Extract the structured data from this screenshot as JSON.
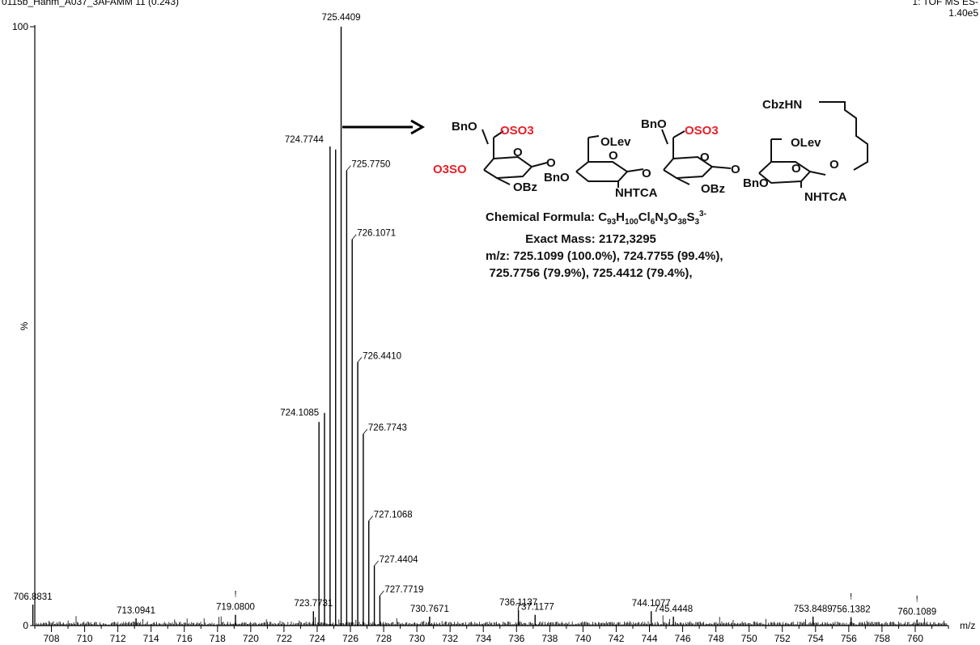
{
  "header": {
    "file_label": "0115b_Hahm_A037_3AFAMM 11 (0.243)",
    "scan_label": "1: TOF MS ES-",
    "intensity_label": "1.40e5"
  },
  "molecule": {
    "formula_prefix": "Chemical Formula: ",
    "exact_mass": "Exact Mass: 2172,3295",
    "mz_line1": "m/z: 725.1099 (100.0%), 724.7755 (99.4%),",
    "mz_line2": "725.7756 (79.9%), 725.4412 (79.4%),",
    "groups": {
      "bno": "BnO",
      "oso3": "OSO3",
      "o3so": "O3SO",
      "obz": "OBz",
      "olev": "OLev",
      "nhtca": "NHTCA",
      "cbzhn": "CbzHN",
      "o": "O"
    },
    "colors": {
      "sulfate": "#e8202a",
      "text": "#111111"
    }
  },
  "chart_data": {
    "type": "bar",
    "title": "",
    "xlabel": "m/z",
    "ylabel": "%",
    "xlim": [
      707,
      762
    ],
    "ylim": [
      0,
      100
    ],
    "x_ticks": [
      708,
      710,
      712,
      714,
      716,
      718,
      720,
      722,
      724,
      726,
      728,
      730,
      732,
      734,
      736,
      738,
      740,
      742,
      744,
      746,
      748,
      750,
      752,
      754,
      756,
      758,
      760
    ],
    "y_ticks": [
      0,
      100
    ],
    "y_tick_labels": [
      "0",
      "100"
    ],
    "peaks": [
      {
        "mz": 706.8831,
        "intensity": 3.5,
        "label": "706.8831"
      },
      {
        "mz": 713.0941,
        "intensity": 1.2,
        "label": "713.0941"
      },
      {
        "mz": 719.08,
        "intensity": 1.8,
        "label": "719.0800"
      },
      {
        "mz": 723.7731,
        "intensity": 2.4,
        "label": "723.7731"
      },
      {
        "mz": 724.1085,
        "intensity": 34.0,
        "label": "724.1085"
      },
      {
        "mz": 724.44,
        "intensity": 35.5,
        "label": ""
      },
      {
        "mz": 724.7744,
        "intensity": 80.0,
        "label": "724.7744"
      },
      {
        "mz": 725.1099,
        "intensity": 79.5,
        "label": ""
      },
      {
        "mz": 725.4409,
        "intensity": 100.0,
        "label": "725.4409"
      },
      {
        "mz": 725.775,
        "intensity": 76.0,
        "label": "725.7750"
      },
      {
        "mz": 726.1071,
        "intensity": 64.5,
        "label": "726.1071"
      },
      {
        "mz": 726.441,
        "intensity": 44.0,
        "label": "726.4410"
      },
      {
        "mz": 726.7743,
        "intensity": 32.0,
        "label": "726.7743"
      },
      {
        "mz": 727.1068,
        "intensity": 17.5,
        "label": "727.1068"
      },
      {
        "mz": 727.4404,
        "intensity": 10.0,
        "label": "727.4404"
      },
      {
        "mz": 727.7719,
        "intensity": 5.0,
        "label": "727.7719"
      },
      {
        "mz": 730.7671,
        "intensity": 1.5,
        "label": "730.7671"
      },
      {
        "mz": 736.1137,
        "intensity": 2.6,
        "label": "736.1137"
      },
      {
        "mz": 737.1177,
        "intensity": 1.8,
        "label": "737.1177"
      },
      {
        "mz": 744.1077,
        "intensity": 2.4,
        "label": "744.1077"
      },
      {
        "mz": 745.4448,
        "intensity": 1.5,
        "label": "745.4448"
      },
      {
        "mz": 753.8489,
        "intensity": 1.5,
        "label": "753.8489"
      },
      {
        "mz": 756.1382,
        "intensity": 1.4,
        "label": "756.1382"
      },
      {
        "mz": 760.1089,
        "intensity": 1.0,
        "label": "760.1089"
      }
    ],
    "marked_peaks": [
      719.08,
      756.1382,
      760.1089
    ],
    "marker_symbol": "!",
    "annotated_peak": 724.7744
  }
}
